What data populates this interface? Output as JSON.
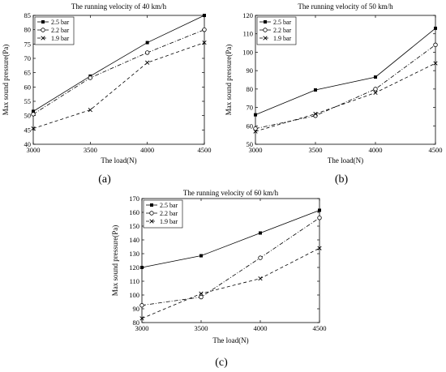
{
  "chart_data": [
    {
      "type": "line",
      "panel_label": "(a)",
      "title": "The running velocity of 40 km/h",
      "xlabel": "The load(N)",
      "ylabel": "Max sound pressure(Pa)",
      "x": [
        3000,
        3500,
        4000,
        4500
      ],
      "xticks": [
        "3000",
        "3500",
        "4000",
        "4500"
      ],
      "xlim": [
        3000,
        4500
      ],
      "ylim": [
        40,
        85
      ],
      "yticks": [
        "40",
        "45",
        "50",
        "55",
        "60",
        "65",
        "70",
        "75",
        "80",
        "85"
      ],
      "legend_position": "top-left",
      "series": [
        {
          "name": "2.5 bar",
          "values": [
            51.5,
            63.8,
            75.5,
            85.0
          ],
          "marker": "square",
          "dash": "solid"
        },
        {
          "name": "2.2 bar",
          "values": [
            50.5,
            63.2,
            72.0,
            80.0
          ],
          "marker": "circle",
          "dash": "dashdot"
        },
        {
          "name": "1.9 bar",
          "values": [
            45.5,
            52.0,
            68.5,
            75.5
          ],
          "marker": "x",
          "dash": "dashed"
        }
      ]
    },
    {
      "type": "line",
      "panel_label": "(b)",
      "title": "The running velocity of 50 km/h",
      "xlabel": "The load(N)",
      "ylabel": "Max sound pressure(Pa)",
      "x": [
        3000,
        3500,
        4000,
        4500
      ],
      "xticks": [
        "3000",
        "3500",
        "4000",
        "4500"
      ],
      "xlim": [
        3000,
        4500
      ],
      "ylim": [
        50,
        120
      ],
      "yticks": [
        "50",
        "60",
        "70",
        "80",
        "90",
        "100",
        "110",
        "120"
      ],
      "legend_position": "top-left",
      "series": [
        {
          "name": "2.5 bar",
          "values": [
            66.0,
            79.5,
            86.5,
            113.0
          ],
          "marker": "square",
          "dash": "solid"
        },
        {
          "name": "2.2 bar",
          "values": [
            58.5,
            65.5,
            80.0,
            104.0
          ],
          "marker": "circle",
          "dash": "dashdot"
        },
        {
          "name": "1.9 bar",
          "values": [
            57.0,
            66.5,
            78.0,
            94.0
          ],
          "marker": "x",
          "dash": "dashed"
        }
      ]
    },
    {
      "type": "line",
      "panel_label": "(c)",
      "title": "The running velocity of 60 km/h",
      "xlabel": "The load(N)",
      "ylabel": "Max sound pressure(Pa)",
      "x": [
        3000,
        3500,
        4000,
        4500
      ],
      "xticks": [
        "3000",
        "3500",
        "4000",
        "4500"
      ],
      "xlim": [
        3000,
        4500
      ],
      "ylim": [
        80,
        170
      ],
      "yticks": [
        "80",
        "90",
        "100",
        "110",
        "120",
        "130",
        "140",
        "150",
        "160",
        "170"
      ],
      "legend_position": "top-left",
      "series": [
        {
          "name": "2.5 bar",
          "values": [
            120.0,
            128.5,
            145.0,
            161.5
          ],
          "marker": "square",
          "dash": "solid"
        },
        {
          "name": "2.2 bar",
          "values": [
            92.5,
            98.5,
            127.0,
            156.0
          ],
          "marker": "circle",
          "dash": "dashdot"
        },
        {
          "name": "1.9 bar",
          "values": [
            83.0,
            101.0,
            112.0,
            134.0
          ],
          "marker": "x",
          "dash": "dashed"
        }
      ]
    }
  ]
}
